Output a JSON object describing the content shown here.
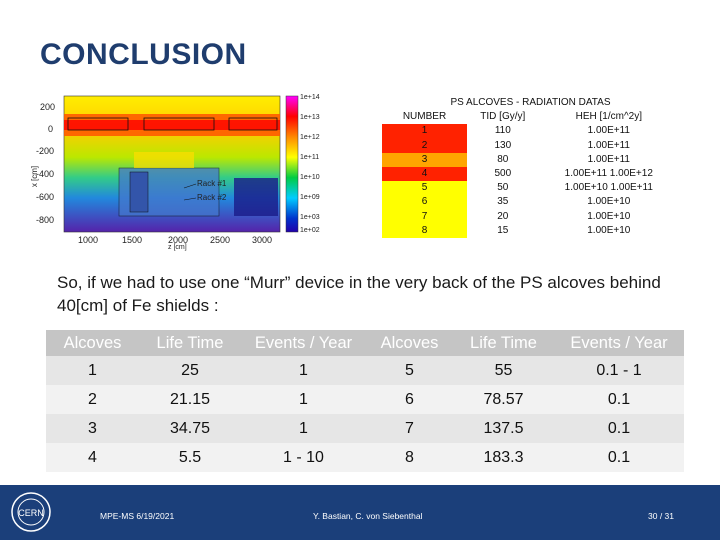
{
  "title": "CONCLUSION",
  "simulation": {
    "y_ticks": [
      "200",
      "0",
      "-200",
      "-400",
      "-600",
      "-800"
    ],
    "x_ticks": [
      "1000",
      "1500",
      "2000",
      "2500",
      "3000"
    ],
    "x_axis_label": "z [cm]",
    "y_axis_label": "x [cm]",
    "colorbar_ticks": [
      "1e+14",
      "1e+13",
      "1e+12",
      "1e+11",
      "1e+10",
      "1e+09",
      "1e+03",
      "1e+02"
    ],
    "annotations": [
      "Rack #1",
      "Rack #2"
    ]
  },
  "radiation_table": {
    "title": "PS ALCOVES - RADIATION DATAS",
    "headers": [
      "NUMBER",
      "TID [Gy/y]",
      "HEH [1/cm^2y]"
    ],
    "rows": [
      {
        "number": "1",
        "tid": "110",
        "heh": "1.00E+11",
        "color": "#ff2200"
      },
      {
        "number": "2",
        "tid": "130",
        "heh": "1.00E+11",
        "color": "#ff2200"
      },
      {
        "number": "3",
        "tid": "80",
        "heh": "1.00E+11",
        "color": "#ffa500"
      },
      {
        "number": "4",
        "tid": "500",
        "heh": "1.00E+11   1.00E+12",
        "color": "#ff2200"
      },
      {
        "number": "5",
        "tid": "50",
        "heh": "1.00E+10   1.00E+11",
        "color": "#ffff00"
      },
      {
        "number": "6",
        "tid": "35",
        "heh": "1.00E+10",
        "color": "#ffff00"
      },
      {
        "number": "7",
        "tid": "20",
        "heh": "1.00E+10",
        "color": "#ffff00"
      },
      {
        "number": "8",
        "tid": "15",
        "heh": "1.00E+10",
        "color": "#ffff00"
      }
    ]
  },
  "paragraph": "So, if we had to use one “Murr” device in the very back of the PS alcoves behind 40[cm] of Fe shields :",
  "lifetime_table": {
    "headers": [
      "Alcoves",
      "Life Time",
      "Events / Year",
      "Alcoves",
      "Life Time",
      "Events / Year"
    ],
    "rows": [
      [
        "1",
        "25",
        "1",
        "5",
        "55",
        "0.1 - 1"
      ],
      [
        "2",
        "21.15",
        "1",
        "6",
        "78.57",
        "0.1"
      ],
      [
        "3",
        "34.75",
        "1",
        "7",
        "137.5",
        "0.1"
      ],
      [
        "4",
        "5.5",
        "1 - 10",
        "8",
        "183.3",
        "0.1"
      ]
    ]
  },
  "footer": {
    "left": "MPE-MS 6/19/2021",
    "center": "Y. Bastian, C. von Siebenthal",
    "right": "30 / 31",
    "logo_text": "CERN"
  }
}
